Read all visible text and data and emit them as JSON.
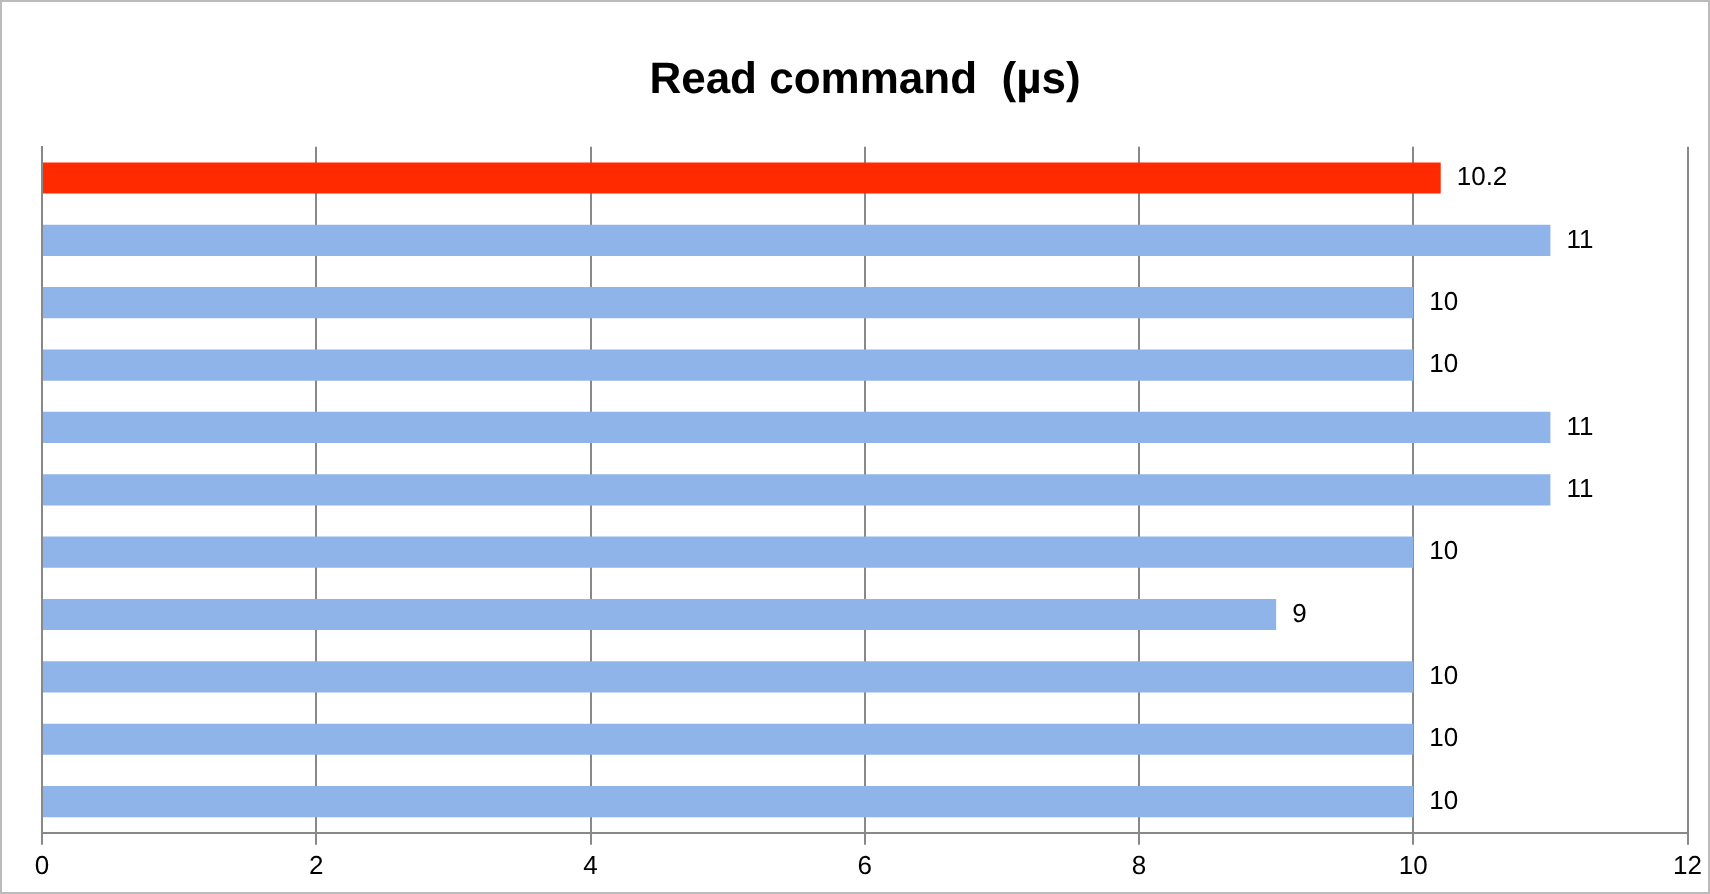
{
  "chart_data": {
    "type": "bar",
    "orientation": "horizontal",
    "title": "Read command  (µs)",
    "categories": [
      null,
      null,
      null,
      null,
      null,
      null,
      null,
      null,
      null,
      null,
      null
    ],
    "values": [
      10.2,
      11,
      10,
      10,
      11,
      11,
      10,
      9,
      10,
      10,
      10
    ],
    "colors": [
      "#ff2a00",
      "#8fb4ea",
      "#8fb4ea",
      "#8fb4ea",
      "#8fb4ea",
      "#8fb4ea",
      "#8fb4ea",
      "#8fb4ea",
      "#8fb4ea",
      "#8fb4ea",
      "#8fb4ea"
    ],
    "xlim": [
      0,
      12
    ],
    "xticks": [
      0,
      2,
      4,
      6,
      8,
      10,
      12
    ],
    "grid": "x",
    "tick_labels": "x",
    "data_labels": true,
    "legend": false
  }
}
